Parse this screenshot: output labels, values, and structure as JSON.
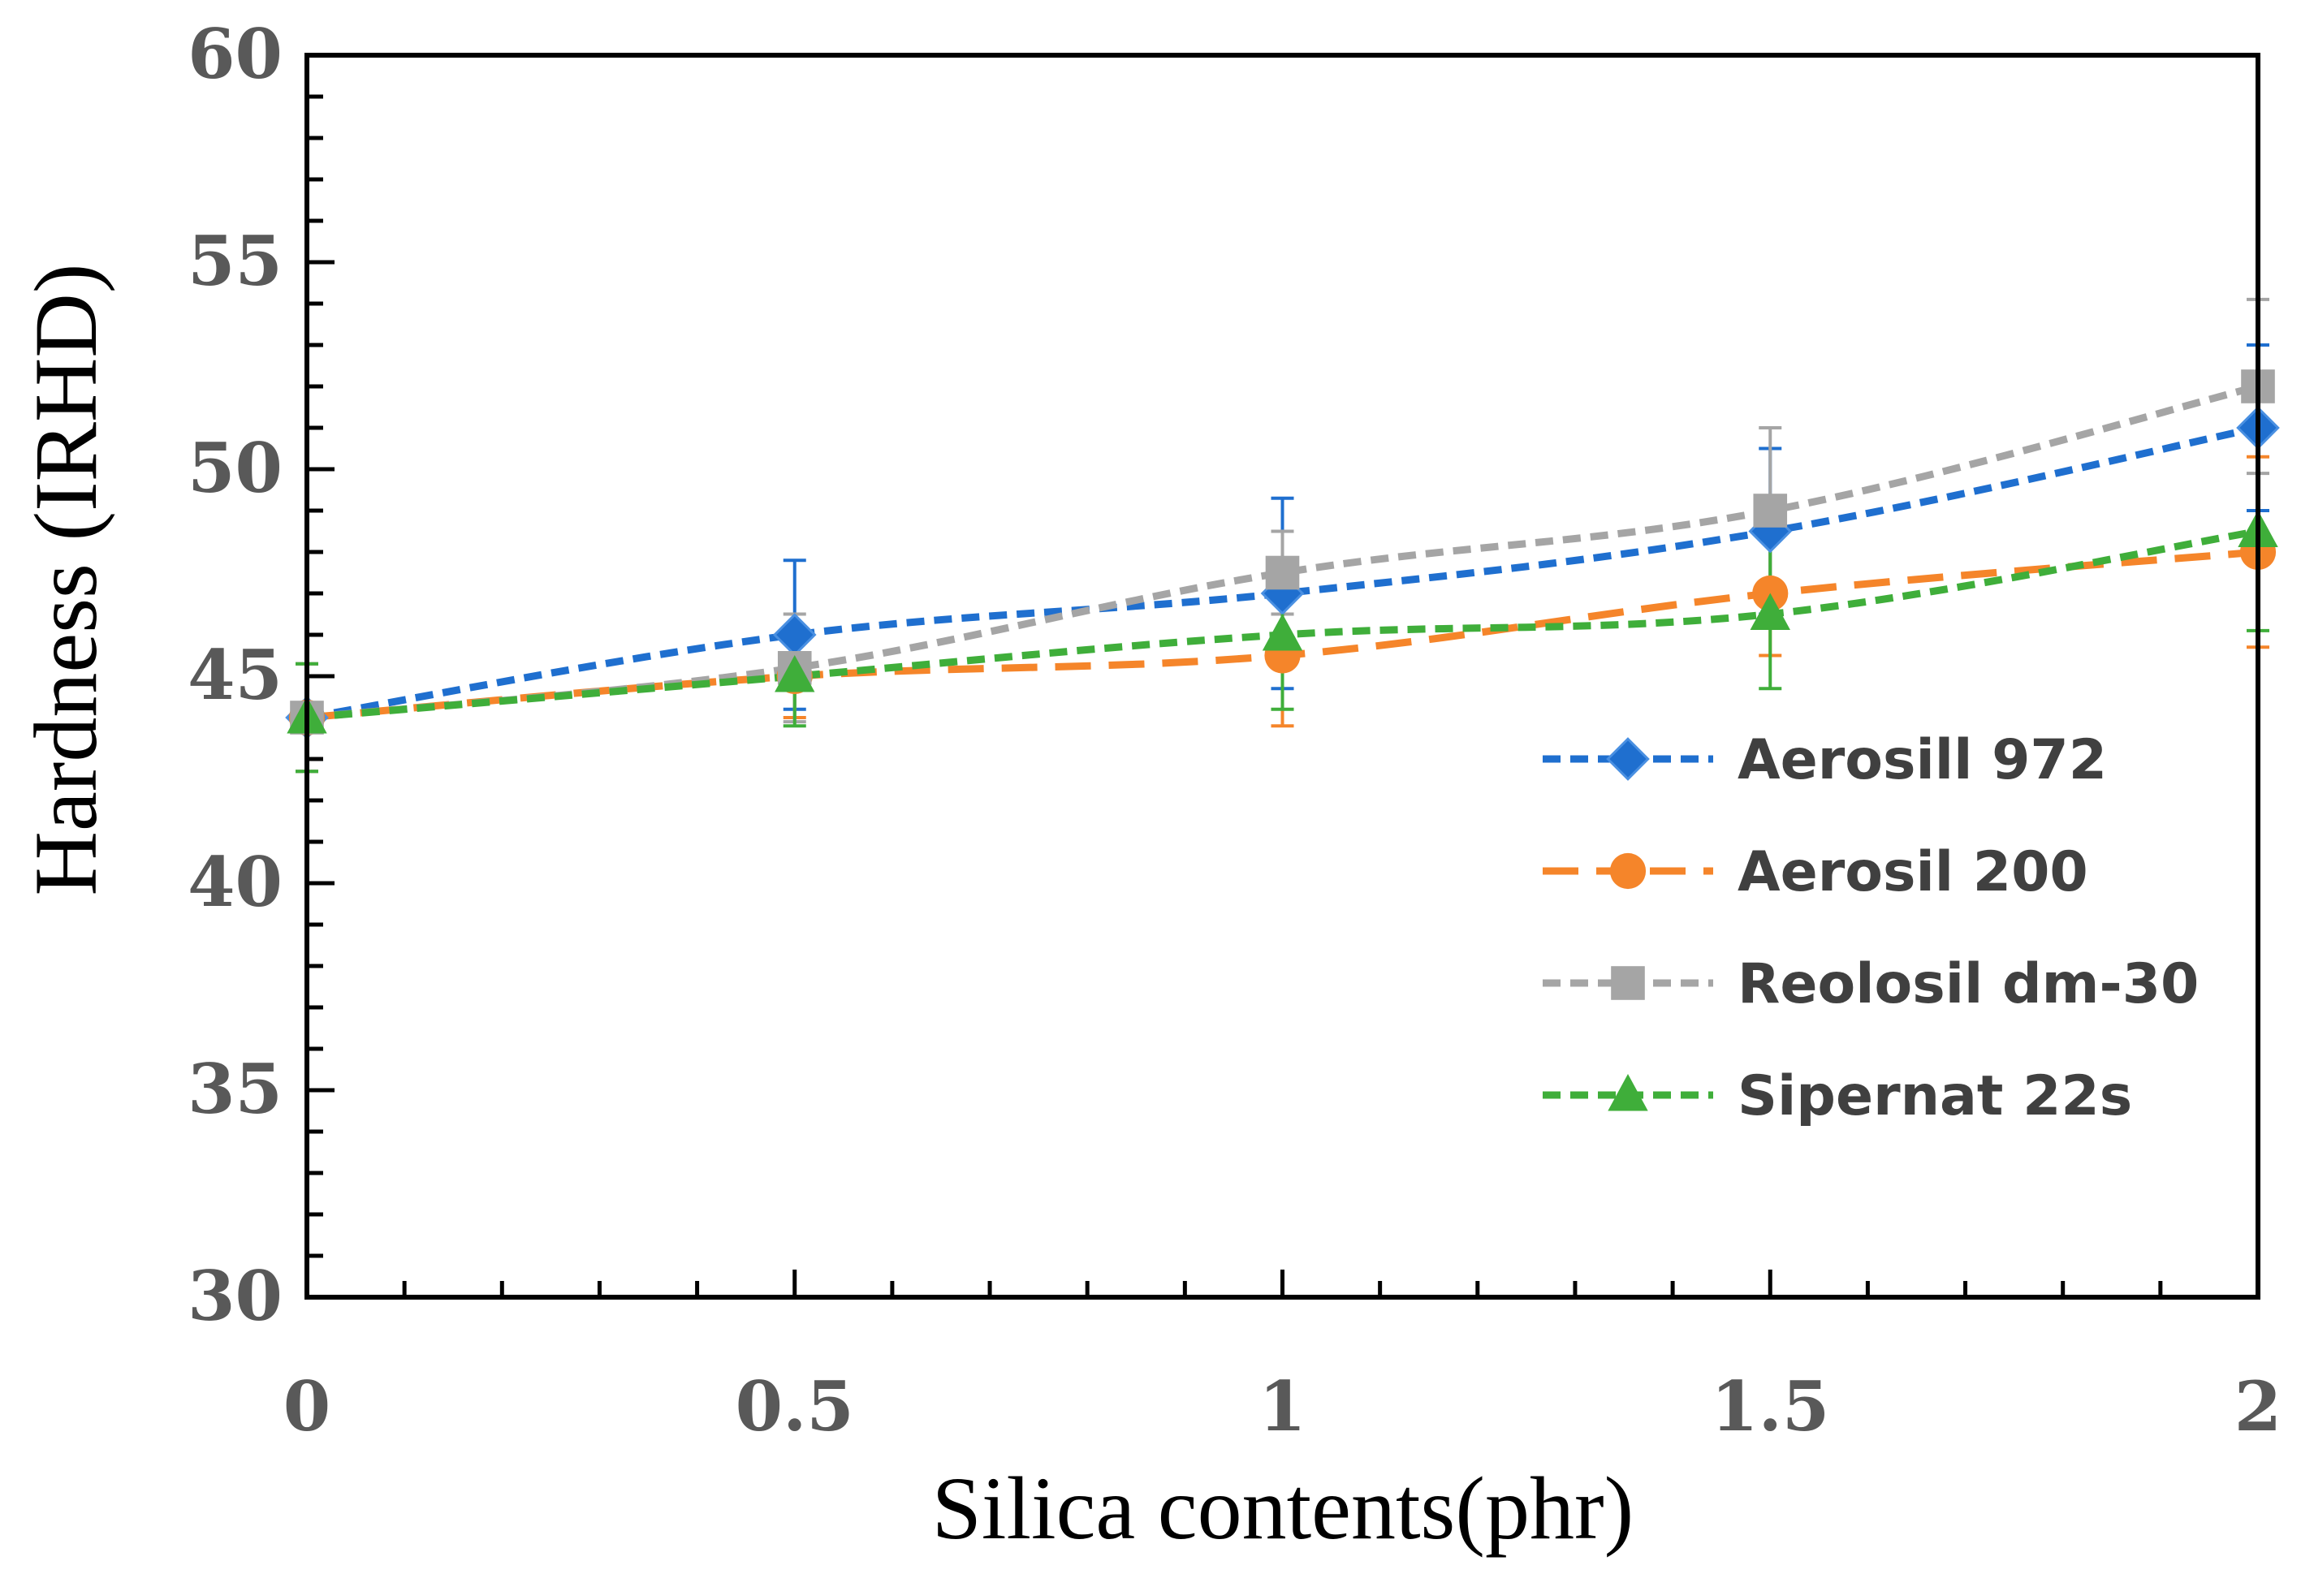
{
  "chart_data": {
    "type": "line",
    "title": "",
    "xlabel": "Silica contents(phr)",
    "ylabel": "Hardness (IRHD)",
    "xlim": [
      0,
      2
    ],
    "ylim": [
      30,
      60
    ],
    "x_ticks": [
      0,
      0.5,
      1,
      1.5,
      2
    ],
    "x_tick_labels": [
      "0",
      "0.5",
      "1",
      "1.5",
      "2"
    ],
    "y_ticks": [
      30,
      35,
      40,
      45,
      50,
      55,
      60
    ],
    "y_tick_labels": [
      "30",
      "35",
      "40",
      "45",
      "50",
      "55",
      "60"
    ],
    "grid": false,
    "legend_position": "right",
    "x": [
      0,
      0.5,
      1,
      1.5,
      2
    ],
    "series": [
      {
        "name": "Aerosill 972",
        "values": [
          44,
          46,
          47,
          48.5,
          51
        ],
        "errors": [
          1.3,
          1.8,
          2.3,
          2.0,
          2.0
        ],
        "color": "#1f6fcf",
        "marker": "diamond",
        "dash": "short"
      },
      {
        "name": "Aerosil 200",
        "values": [
          44,
          45,
          45.5,
          47,
          48
        ],
        "errors": [
          1.3,
          1.0,
          1.7,
          1.5,
          2.3
        ],
        "color": "#f5852a",
        "marker": "circle",
        "dash": "long"
      },
      {
        "name": "Reolosil dm-30",
        "values": [
          44,
          45.2,
          47.5,
          49,
          52
        ],
        "errors": [
          1.3,
          1.3,
          1.0,
          2.0,
          2.1
        ],
        "color": "#a5a5a5",
        "marker": "square",
        "dash": "short"
      },
      {
        "name": "Sipernat 22s",
        "values": [
          44,
          45,
          46,
          46.5,
          48.5
        ],
        "errors": [
          1.3,
          1.2,
          1.8,
          1.8,
          2.4
        ],
        "color": "#3fae3a",
        "marker": "triangle",
        "dash": "short"
      }
    ]
  }
}
